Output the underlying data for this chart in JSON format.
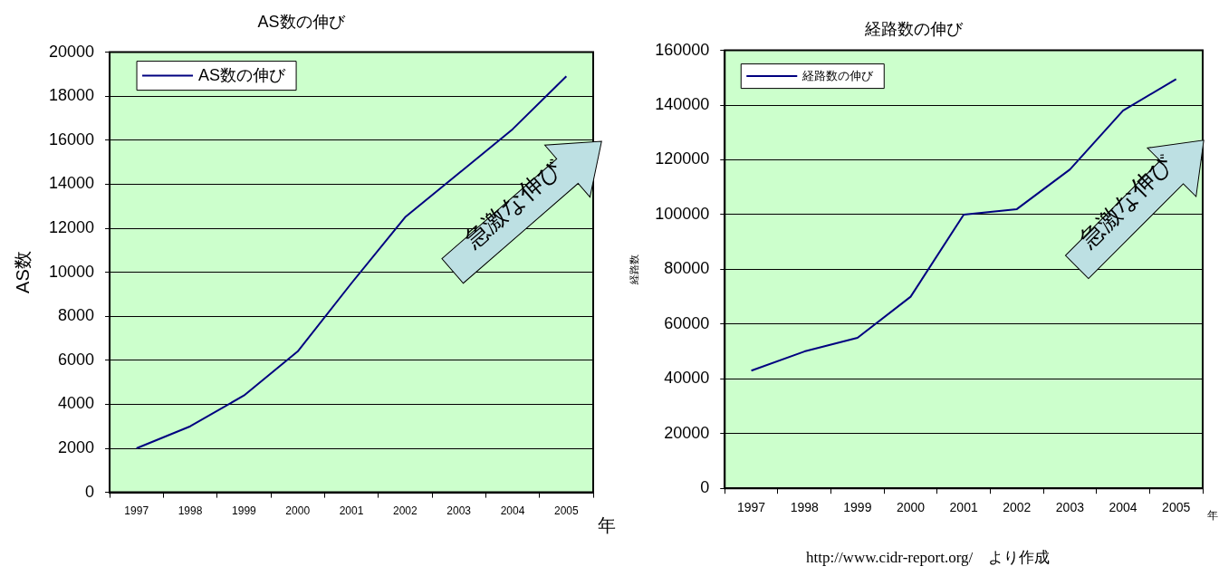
{
  "chart_data": [
    {
      "type": "line",
      "title": "AS数の伸び",
      "xlabel": "年",
      "ylabel": "AS数",
      "categories": [
        "1997",
        "1998",
        "1999",
        "2000",
        "2001",
        "2002",
        "2003",
        "2004",
        "2005"
      ],
      "series": [
        {
          "name": "AS数の伸び",
          "color": "#000080",
          "values": [
            2000,
            3000,
            4400,
            6400,
            9500,
            12500,
            14500,
            16500,
            18900
          ]
        }
      ],
      "ylim": [
        0,
        20000
      ],
      "yticks": [
        0,
        2000,
        4000,
        6000,
        8000,
        10000,
        12000,
        14000,
        16000,
        18000,
        20000
      ],
      "grid": "y",
      "legend": "top left",
      "marker": "none",
      "line_style": "solid",
      "annotations": [
        "急激な伸び"
      ]
    },
    {
      "type": "line",
      "title": "経路数の伸び",
      "xlabel": "年",
      "ylabel": "経路数",
      "categories": [
        "1997",
        "1998",
        "1999",
        "2000",
        "2001",
        "2002",
        "2003",
        "2004",
        "2005"
      ],
      "series": [
        {
          "name": "経路数の伸び",
          "color": "#000080",
          "values": [
            43000,
            50000,
            55000,
            70000,
            100000,
            102000,
            116500,
            138000,
            149500
          ]
        }
      ],
      "ylim": [
        0,
        160000
      ],
      "yticks": [
        0,
        20000,
        40000,
        60000,
        80000,
        100000,
        120000,
        140000,
        160000
      ],
      "grid": "y",
      "legend": "top left",
      "marker": "none",
      "line_style": "solid",
      "annotations": [
        "急激な伸び",
        "http://www.cidr-report.org/　より作成"
      ]
    }
  ]
}
